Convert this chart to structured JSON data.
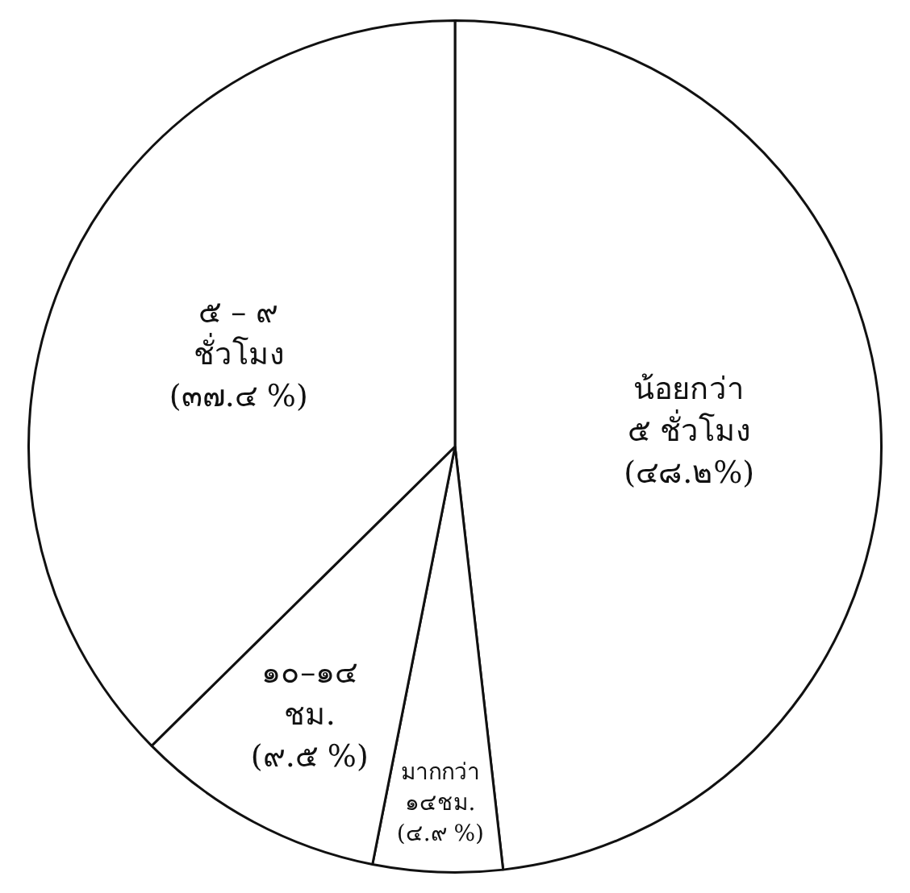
{
  "chart_data": {
    "type": "pie",
    "categories": [
      "น้อยกว่า\n๕ ชั่วโมง",
      "มากกว่า\n๑๔ชม.",
      "๑๐–๑๔\nชม.",
      "๕ – ๙\nชั่วโมง"
    ],
    "values": [
      48.2,
      4.9,
      9.5,
      37.4
    ],
    "value_labels": [
      "(๔๘.๒%)",
      "(๔.๙ %)",
      "(๙.๕ %)",
      "(๓๗.๔ %)"
    ],
    "colors": [
      "#ffffff",
      "#ffffff",
      "#ffffff",
      "#ffffff"
    ],
    "legend": false
  }
}
